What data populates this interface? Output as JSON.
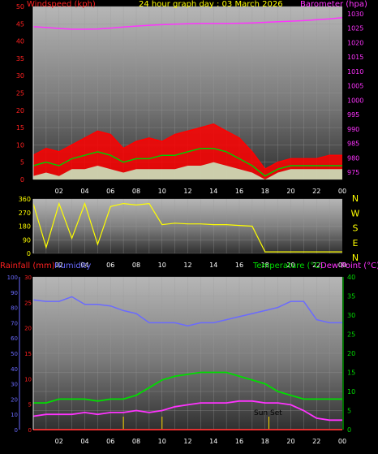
{
  "header": {
    "left_label": "Windspeed (kph)",
    "center_label": "24 hour graph day : 03 March 2026",
    "right_label": "Barometer (hpa)"
  },
  "panel_labels": {
    "rainfall": "Rainfall (mm)",
    "humidity": "Humidity",
    "temperature": "Temperature (°C)",
    "dewpoint": "Dew Point (°C)"
  },
  "annotations": {
    "sun_set": "Sun Set"
  },
  "colors": {
    "wind_gust": "#ff0000",
    "wind_avg": "#00cc00",
    "wind_min": "#c8f0c8",
    "barometer": "#ff33ff",
    "direction": "#ffff00",
    "temperature": "#00dd00",
    "dewpoint": "#ff33ff",
    "humidity": "#6a6aff",
    "rainfall": "#ff3333",
    "marker": "#ffdd00"
  },
  "chart_data": [
    {
      "type": "line",
      "x_ticks": [
        "02",
        "04",
        "06",
        "08",
        "10",
        "12",
        "14",
        "16",
        "18",
        "20",
        "22",
        "00"
      ],
      "y_left": {
        "ticks": [
          "0",
          "5",
          "10",
          "15",
          "20",
          "25",
          "30",
          "35",
          "40",
          "45",
          "50"
        ],
        "ylim": [
          0,
          50
        ]
      },
      "y_right": {
        "ticks": [
          "975",
          "980",
          "985",
          "990",
          "995",
          "1000",
          "1005",
          "1010",
          "1015",
          "1020",
          "1025",
          "1030"
        ],
        "ylim": [
          972.5,
          1032.5
        ]
      },
      "x_hours": [
        0,
        1,
        2,
        3,
        4,
        5,
        6,
        7,
        8,
        9,
        10,
        11,
        12,
        13,
        14,
        15,
        16,
        17,
        18,
        19,
        20,
        21,
        22,
        23,
        24
      ],
      "series": [
        {
          "key": "gust",
          "axis": "left",
          "values": [
            7,
            9,
            8,
            10,
            12,
            14,
            13,
            9,
            11,
            12,
            11,
            13,
            14,
            15,
            16,
            14,
            12,
            8,
            3,
            5,
            6,
            6,
            6,
            7,
            7
          ]
        },
        {
          "key": "average",
          "axis": "left",
          "values": [
            4,
            5,
            4,
            6,
            7,
            8,
            7,
            5,
            6,
            6,
            7,
            7,
            8,
            9,
            9,
            8,
            6,
            4,
            1,
            3,
            4,
            4,
            4,
            4,
            4
          ]
        },
        {
          "key": "minimum",
          "axis": "left",
          "values": [
            1,
            2,
            1,
            3,
            3,
            4,
            3,
            2,
            3,
            3,
            3,
            3,
            4,
            4,
            5,
            4,
            3,
            2,
            0,
            2,
            3,
            3,
            3,
            3,
            3
          ]
        },
        {
          "key": "barometer",
          "axis": "right",
          "values": [
            1025.5,
            1025.2,
            1024.9,
            1024.6,
            1024.6,
            1024.7,
            1025.0,
            1025.4,
            1025.7,
            1026.0,
            1026.2,
            1026.4,
            1026.5,
            1026.6,
            1026.6,
            1026.6,
            1026.7,
            1026.8,
            1027.0,
            1027.2,
            1027.4,
            1027.6,
            1027.9,
            1028.2,
            1028.6
          ]
        }
      ]
    },
    {
      "type": "line",
      "x_ticks": [
        "02",
        "04",
        "06",
        "08",
        "10",
        "12",
        "14",
        "16",
        "18",
        "20",
        "22",
        "00"
      ],
      "y_left": {
        "ticks": [
          "0",
          "90",
          "180",
          "270",
          "360"
        ],
        "ylim": [
          0,
          360
        ]
      },
      "y_right_labels": [
        "N",
        "W",
        "S",
        "E",
        "N"
      ],
      "x_hours": [
        0,
        1,
        2,
        3,
        4,
        5,
        6,
        7,
        8,
        9,
        10,
        11,
        12,
        13,
        14,
        15,
        16,
        17,
        18,
        19,
        20,
        21,
        22,
        23,
        24
      ],
      "series": [
        {
          "key": "wind_direction",
          "values": [
            330,
            40,
            330,
            100,
            330,
            60,
            310,
            330,
            320,
            330,
            190,
            200,
            195,
            195,
            190,
            190,
            185,
            180,
            10,
            10,
            10,
            10,
            10,
            10,
            10
          ]
        }
      ]
    },
    {
      "type": "line",
      "x_ticks": [
        "02",
        "04",
        "06",
        "08",
        "10",
        "12",
        "14",
        "16",
        "18",
        "20",
        "22",
        "00"
      ],
      "y_rain": {
        "ticks": [
          "0",
          "5",
          "10",
          "15",
          "20",
          "25",
          "30"
        ],
        "ylim": [
          0,
          30
        ]
      },
      "y_humidity": {
        "ticks": [
          "0",
          "10",
          "20",
          "30",
          "40",
          "50",
          "60",
          "70",
          "80",
          "90",
          "100"
        ],
        "ylim": [
          0,
          100
        ]
      },
      "y_temp": {
        "ticks": [
          "0",
          "5",
          "10",
          "15",
          "20",
          "25",
          "30",
          "35",
          "40"
        ],
        "ylim": [
          0,
          40
        ]
      },
      "x_hours": [
        0,
        1,
        2,
        3,
        4,
        5,
        6,
        7,
        8,
        9,
        10,
        11,
        12,
        13,
        14,
        15,
        16,
        17,
        18,
        19,
        20,
        21,
        22,
        23,
        24
      ],
      "series": [
        {
          "key": "humidity",
          "axis": "humidity",
          "values": [
            85,
            84,
            84,
            87,
            82,
            82,
            81,
            78,
            76,
            70,
            70,
            70,
            68,
            70,
            70,
            72,
            74,
            76,
            78,
            80,
            84,
            84,
            72,
            70,
            70
          ]
        },
        {
          "key": "temperature",
          "axis": "temp",
          "values": [
            7,
            7,
            8,
            8,
            8,
            7.5,
            8,
            8,
            9,
            11,
            13,
            14,
            14.5,
            15,
            15,
            15,
            14,
            13,
            12,
            10,
            9,
            8,
            8,
            8,
            8
          ]
        },
        {
          "key": "dewpoint",
          "axis": "temp",
          "values": [
            3.5,
            4,
            4,
            4,
            4.5,
            4,
            4.5,
            4.5,
            5,
            4.5,
            5,
            6,
            6.5,
            7,
            7,
            7,
            7.5,
            7.5,
            7,
            7,
            6.5,
            5,
            3,
            2.5,
            2.5
          ]
        },
        {
          "key": "rainfall",
          "axis": "rain",
          "values": [
            0,
            0,
            0,
            0,
            0,
            0,
            0,
            0,
            0,
            0,
            0,
            0,
            0,
            0,
            0,
            0,
            0,
            0,
            0,
            0,
            0,
            0,
            0,
            0,
            0
          ]
        }
      ],
      "event_markers_hours": [
        7,
        10,
        18.3
      ]
    }
  ]
}
